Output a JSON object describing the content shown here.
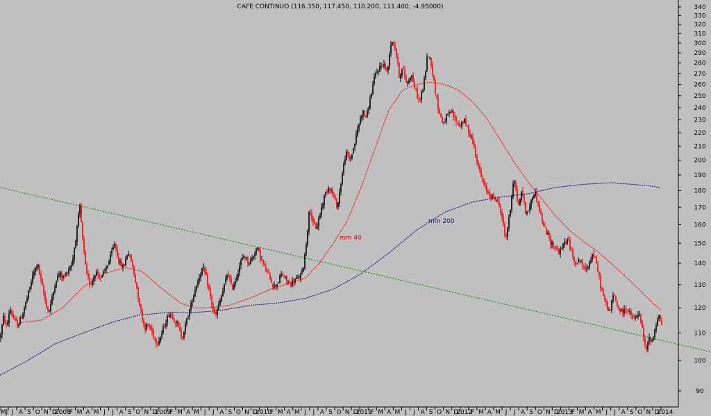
{
  "chart_data": {
    "type": "candlestick",
    "title": "CAFE CONTINUO (116.350, 117.450, 110.200, 111.400, -4.95000)",
    "y_scale": "log",
    "ylim": [
      85,
      345
    ],
    "y_ticks": [
      90,
      100,
      110,
      120,
      130,
      140,
      150,
      160,
      170,
      180,
      190,
      200,
      210,
      220,
      230,
      240,
      250,
      260,
      270,
      280,
      290,
      300,
      310,
      320,
      330,
      340
    ],
    "x_tick_labels": [
      "MJ",
      "J",
      "A",
      "S",
      "O",
      "N",
      "D",
      "2008",
      "F",
      "M",
      "A",
      "M",
      "J",
      "J",
      "A",
      "S",
      "O",
      "N",
      "D",
      "2009",
      "F",
      "M",
      "A",
      "M",
      "J",
      "J",
      "A",
      "S",
      "O",
      "N",
      "D",
      "2010",
      "F",
      "M",
      "A",
      "M",
      "J",
      "J",
      "A",
      "S",
      "O",
      "N",
      "D",
      "2011",
      "F",
      "M",
      "A",
      "M",
      "J",
      "J",
      "A",
      "S",
      "O",
      "N",
      "D",
      "2012",
      "F",
      "M",
      "A",
      "M",
      "J",
      "J",
      "A",
      "S",
      "O",
      "N",
      "D",
      "2013",
      "F",
      "M",
      "A",
      "M",
      "J",
      "J",
      "A",
      "S",
      "O",
      "N",
      "D",
      "2014"
    ],
    "up_color": "#000000",
    "down_color": "#ff0000",
    "price_path": [
      [
        0,
        108
      ],
      [
        5,
        116
      ],
      [
        10,
        112
      ],
      [
        14,
        120
      ],
      [
        20,
        115
      ],
      [
        26,
        113
      ],
      [
        33,
        118
      ],
      [
        40,
        125
      ],
      [
        48,
        135
      ],
      [
        54,
        140
      ],
      [
        60,
        130
      ],
      [
        66,
        122
      ],
      [
        70,
        118
      ],
      [
        76,
        125
      ],
      [
        80,
        132
      ],
      [
        86,
        135
      ],
      [
        92,
        133
      ],
      [
        98,
        137
      ],
      [
        104,
        140
      ],
      [
        110,
        155
      ],
      [
        115,
        170
      ],
      [
        119,
        152
      ],
      [
        124,
        135
      ],
      [
        130,
        130
      ],
      [
        138,
        136
      ],
      [
        146,
        133
      ],
      [
        152,
        137
      ],
      [
        158,
        142
      ],
      [
        165,
        150
      ],
      [
        172,
        140
      ],
      [
        178,
        138
      ],
      [
        184,
        146
      ],
      [
        190,
        140
      ],
      [
        196,
        130
      ],
      [
        202,
        120
      ],
      [
        208,
        112
      ],
      [
        214,
        113
      ],
      [
        220,
        110
      ],
      [
        226,
        106
      ],
      [
        232,
        109
      ],
      [
        238,
        114
      ],
      [
        244,
        118
      ],
      [
        250,
        116
      ],
      [
        256,
        113
      ],
      [
        262,
        108
      ],
      [
        268,
        114
      ],
      [
        274,
        120
      ],
      [
        280,
        127
      ],
      [
        286,
        133
      ],
      [
        292,
        138
      ],
      [
        298,
        132
      ],
      [
        304,
        123
      ],
      [
        310,
        116
      ],
      [
        316,
        122
      ],
      [
        322,
        128
      ],
      [
        328,
        136
      ],
      [
        334,
        128
      ],
      [
        340,
        133
      ],
      [
        346,
        140
      ],
      [
        352,
        144
      ],
      [
        358,
        140
      ],
      [
        364,
        143
      ],
      [
        370,
        148
      ],
      [
        376,
        142
      ],
      [
        382,
        137
      ],
      [
        388,
        134
      ],
      [
        394,
        129
      ],
      [
        400,
        131
      ],
      [
        406,
        135
      ],
      [
        412,
        132
      ],
      [
        418,
        130
      ],
      [
        424,
        132
      ],
      [
        430,
        133
      ],
      [
        436,
        136
      ],
      [
        441,
        150
      ],
      [
        446,
        170
      ],
      [
        451,
        160
      ],
      [
        456,
        158
      ],
      [
        462,
        168
      ],
      [
        468,
        178
      ],
      [
        474,
        183
      ],
      [
        480,
        177
      ],
      [
        486,
        170
      ],
      [
        492,
        188
      ],
      [
        498,
        205
      ],
      [
        504,
        200
      ],
      [
        510,
        210
      ],
      [
        516,
        225
      ],
      [
        522,
        237
      ],
      [
        528,
        232
      ],
      [
        534,
        250
      ],
      [
        540,
        268
      ],
      [
        546,
        275
      ],
      [
        552,
        280
      ],
      [
        558,
        270
      ],
      [
        562,
        298
      ],
      [
        566,
        303
      ],
      [
        570,
        292
      ],
      [
        575,
        268
      ],
      [
        580,
        275
      ],
      [
        586,
        260
      ],
      [
        592,
        270
      ],
      [
        598,
        255
      ],
      [
        604,
        245
      ],
      [
        610,
        258
      ],
      [
        616,
        290
      ],
      [
        621,
        280
      ],
      [
        626,
        257
      ],
      [
        632,
        237
      ],
      [
        638,
        227
      ],
      [
        644,
        233
      ],
      [
        650,
        236
      ],
      [
        656,
        230
      ],
      [
        662,
        225
      ],
      [
        668,
        230
      ],
      [
        674,
        222
      ],
      [
        680,
        215
      ],
      [
        686,
        202
      ],
      [
        692,
        190
      ],
      [
        698,
        182
      ],
      [
        704,
        178
      ],
      [
        710,
        176
      ],
      [
        716,
        174
      ],
      [
        722,
        167
      ],
      [
        728,
        152
      ],
      [
        734,
        165
      ],
      [
        740,
        190
      ],
      [
        746,
        170
      ],
      [
        752,
        180
      ],
      [
        758,
        165
      ],
      [
        764,
        172
      ],
      [
        770,
        180
      ],
      [
        776,
        170
      ],
      [
        782,
        160
      ],
      [
        788,
        155
      ],
      [
        794,
        150
      ],
      [
        800,
        148
      ],
      [
        806,
        145
      ],
      [
        812,
        150
      ],
      [
        818,
        152
      ],
      [
        824,
        144
      ],
      [
        830,
        140
      ],
      [
        836,
        142
      ],
      [
        842,
        136
      ],
      [
        848,
        140
      ],
      [
        854,
        145
      ],
      [
        860,
        138
      ],
      [
        866,
        128
      ],
      [
        872,
        122
      ],
      [
        878,
        118
      ],
      [
        884,
        126
      ],
      [
        890,
        120
      ],
      [
        896,
        118
      ],
      [
        902,
        120
      ],
      [
        908,
        117
      ],
      [
        914,
        115
      ],
      [
        920,
        118
      ],
      [
        926,
        110
      ],
      [
        930,
        103
      ],
      [
        935,
        108
      ],
      [
        940,
        107
      ],
      [
        946,
        115
      ],
      [
        950,
        117
      ],
      [
        954,
        111
      ]
    ],
    "series": [
      {
        "name": "mm 40",
        "color": "#ff0000",
        "points": [
          [
            30,
            114
          ],
          [
            60,
            115
          ],
          [
            90,
            120
          ],
          [
            120,
            129
          ],
          [
            150,
            135
          ],
          [
            180,
            138
          ],
          [
            205,
            136
          ],
          [
            230,
            129
          ],
          [
            260,
            122
          ],
          [
            280,
            120
          ],
          [
            300,
            120
          ],
          [
            330,
            121
          ],
          [
            360,
            124
          ],
          [
            390,
            128
          ],
          [
            420,
            131
          ],
          [
            440,
            133
          ],
          [
            460,
            140
          ],
          [
            480,
            150
          ],
          [
            500,
            162
          ],
          [
            520,
            182
          ],
          [
            540,
            208
          ],
          [
            560,
            238
          ],
          [
            580,
            255
          ],
          [
            600,
            260
          ],
          [
            620,
            262
          ],
          [
            640,
            260
          ],
          [
            660,
            255
          ],
          [
            680,
            245
          ],
          [
            700,
            232
          ],
          [
            720,
            215
          ],
          [
            740,
            199
          ],
          [
            760,
            186
          ],
          [
            780,
            175
          ],
          [
            800,
            165
          ],
          [
            820,
            157
          ],
          [
            840,
            151
          ],
          [
            860,
            146
          ],
          [
            880,
            140
          ],
          [
            900,
            134
          ],
          [
            920,
            128
          ],
          [
            940,
            122
          ],
          [
            952,
            119
          ]
        ]
      },
      {
        "name": "mm 200",
        "color": "#2a0070",
        "points": [
          [
            0,
            95
          ],
          [
            40,
            100
          ],
          [
            80,
            106
          ],
          [
            120,
            110
          ],
          [
            160,
            114
          ],
          [
            200,
            117
          ],
          [
            240,
            118
          ],
          [
            280,
            118
          ],
          [
            320,
            119
          ],
          [
            360,
            121
          ],
          [
            400,
            122
          ],
          [
            440,
            124
          ],
          [
            480,
            128
          ],
          [
            520,
            135
          ],
          [
            560,
            145
          ],
          [
            600,
            157
          ],
          [
            640,
            167
          ],
          [
            680,
            173
          ],
          [
            720,
            176
          ],
          [
            760,
            178
          ],
          [
            800,
            182
          ],
          [
            840,
            184
          ],
          [
            880,
            185
          ],
          [
            910,
            184
          ],
          [
            935,
            183
          ],
          [
            950,
            182
          ]
        ]
      },
      {
        "name": "trendline",
        "color": "#008000",
        "dashed": true,
        "points": [
          [
            0,
            182
          ],
          [
            1024,
            103
          ]
        ]
      }
    ],
    "annotations": [
      {
        "text": "mm 40",
        "x": 489,
        "y": 152,
        "color": "#ff0000"
      },
      {
        "text": "mm 200",
        "x": 617,
        "y": 161,
        "color": "#2a0070"
      }
    ]
  }
}
